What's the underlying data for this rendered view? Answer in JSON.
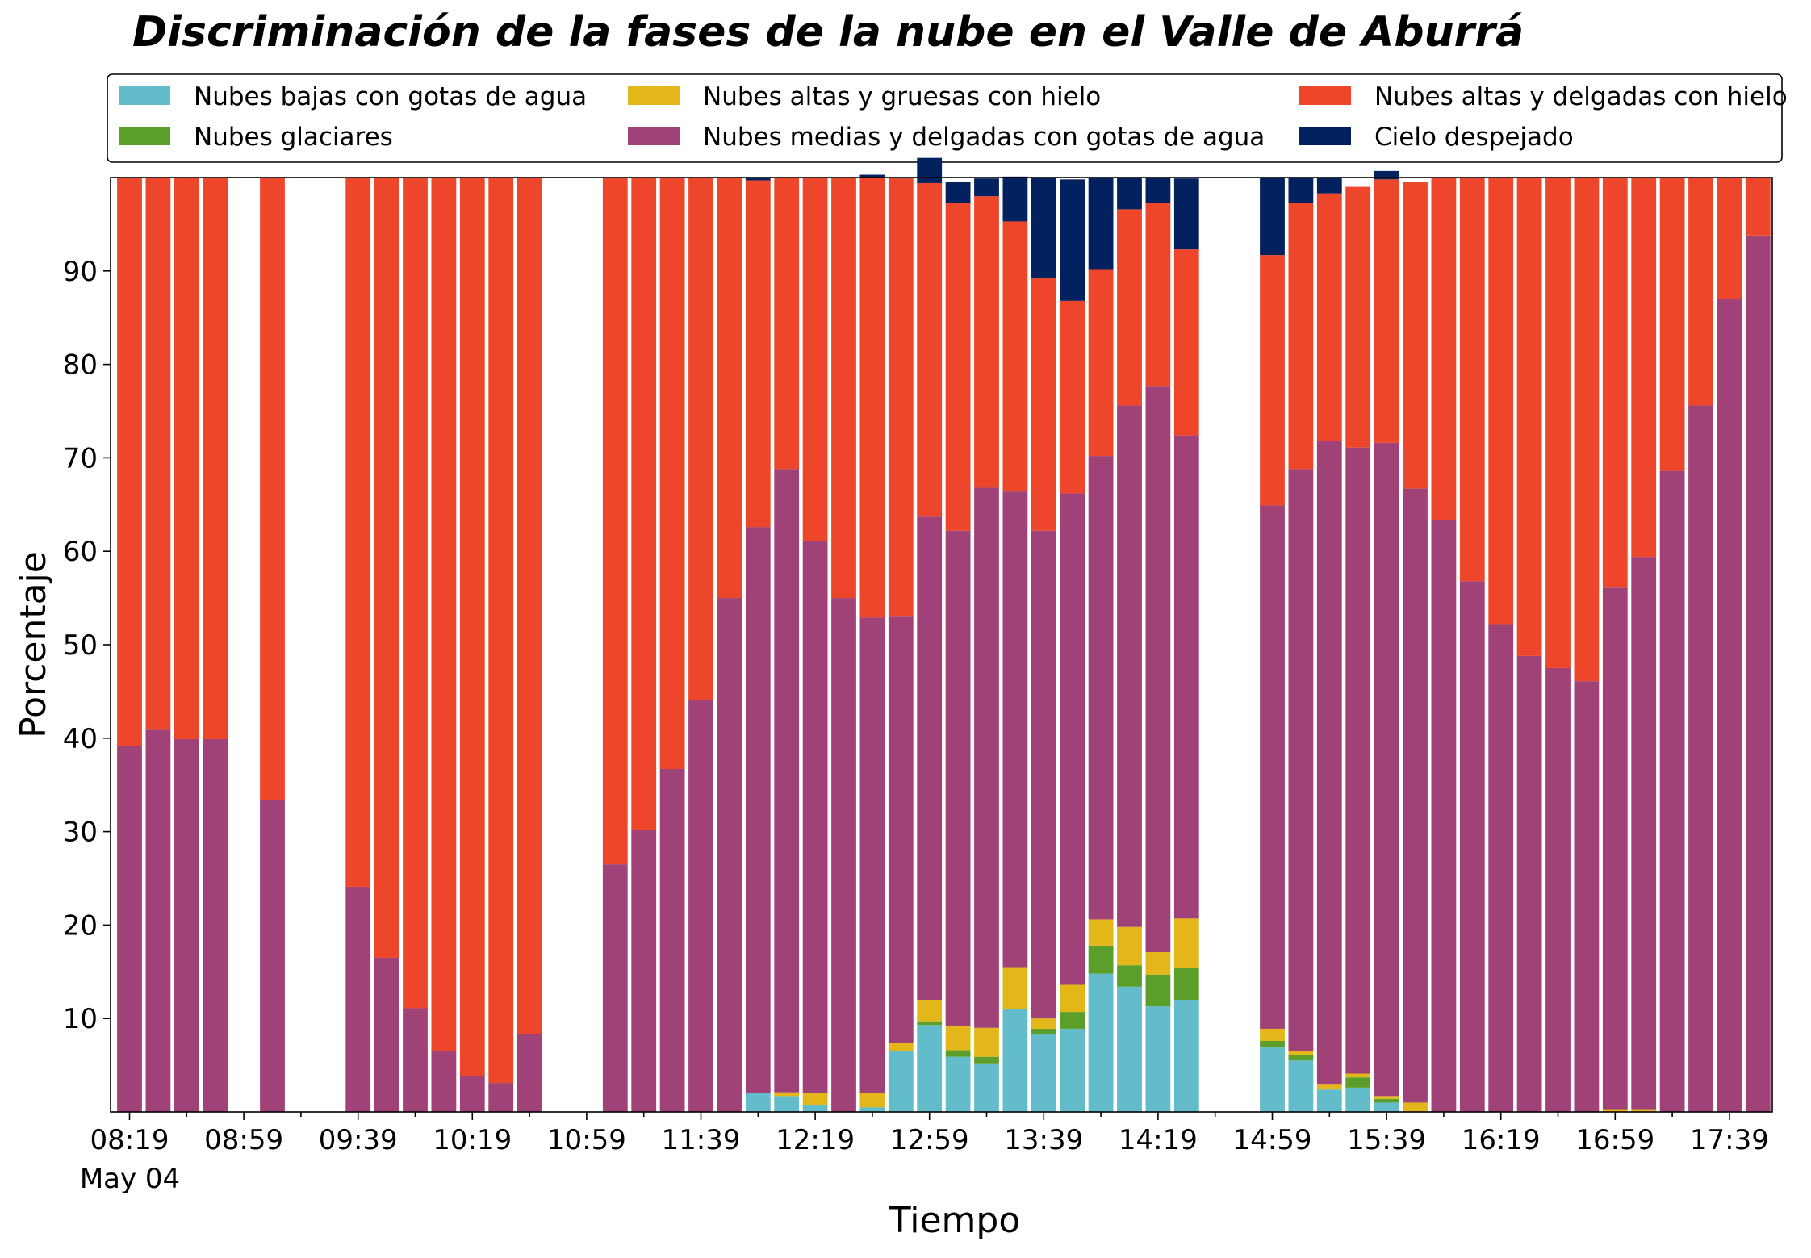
{
  "chart_data": {
    "type": "bar",
    "stacked": true,
    "title": "Discriminación de la fases de la nube en el Valle de Aburrá",
    "xlabel": "Tiempo",
    "ylabel": "Porcentaje",
    "ylim": [
      0,
      100
    ],
    "yticks": [
      10,
      20,
      30,
      40,
      50,
      60,
      70,
      80,
      90
    ],
    "x_major_tick_labels": [
      "08:19",
      "08:59",
      "09:39",
      "10:19",
      "10:59",
      "11:39",
      "12:19",
      "12:59",
      "13:39",
      "14:19",
      "14:59",
      "15:39",
      "16:19",
      "16:59",
      "17:39"
    ],
    "x_date_label": "May 04",
    "legend": {
      "placement": "top",
      "columns": 3,
      "entries": [
        {
          "name": "Nubes bajas con gotas de agua",
          "color": "#63BCC9"
        },
        {
          "name": "Nubes glaciares",
          "color": "#5B9F2A"
        },
        {
          "name": "Nubes altas y gruesas con hielo",
          "color": "#E3B71A"
        },
        {
          "name": "Nubes medias y delgadas con gotas de agua",
          "color": "#A04178"
        },
        {
          "name": "Nubes altas y delgadas con hielo",
          "color": "#EE462B"
        },
        {
          "name": "Cielo despejado",
          "color": "#03215E"
        }
      ]
    },
    "x": [
      "08:19",
      "08:29",
      "08:39",
      "08:49",
      "08:59",
      "09:09",
      "09:19",
      "09:29",
      "09:39",
      "09:49",
      "09:59",
      "10:09",
      "10:19",
      "10:29",
      "10:39",
      "10:49",
      "10:59",
      "11:09",
      "11:19",
      "11:29",
      "11:39",
      "11:49",
      "11:59",
      "12:09",
      "12:19",
      "12:29",
      "12:39",
      "12:49",
      "12:59",
      "13:09",
      "13:19",
      "13:29",
      "13:39",
      "13:49",
      "13:59",
      "14:09",
      "14:19",
      "14:29",
      "14:39",
      "14:49",
      "14:59",
      "15:09",
      "15:19",
      "15:29",
      "15:39",
      "15:49",
      "15:59",
      "16:09",
      "16:19",
      "16:29",
      "16:39",
      "16:49",
      "16:59",
      "17:09",
      "17:19",
      "17:29",
      "17:39",
      "17:49"
    ],
    "series": [
      {
        "name": "Nubes bajas con gotas de agua",
        "color": "#63BCC9",
        "values": [
          0,
          0,
          0,
          0,
          null,
          0,
          null,
          null,
          0,
          0,
          0,
          0,
          0,
          0,
          0,
          null,
          null,
          0,
          0,
          0,
          0,
          0,
          2,
          1.7,
          0.7,
          0,
          0.5,
          6.5,
          9.3,
          5.9,
          5.2,
          11.0,
          8.3,
          8.9,
          14.8,
          13.4,
          11.3,
          12.0,
          null,
          null,
          6.9,
          5.5,
          2.4,
          2.6,
          1.0,
          0,
          0,
          0,
          0,
          0,
          0,
          0,
          0,
          0,
          0,
          0,
          0,
          0
        ]
      },
      {
        "name": "Nubes glaciares",
        "color": "#5B9F2A",
        "values": [
          0,
          0,
          0,
          0,
          null,
          0,
          null,
          null,
          0,
          0,
          0,
          0,
          0,
          0,
          0,
          null,
          null,
          0,
          0,
          0,
          0,
          0,
          0,
          0,
          0,
          0,
          0,
          0,
          0.4,
          0.7,
          0.7,
          0,
          0.6,
          1.8,
          3.0,
          2.3,
          3.4,
          3.4,
          null,
          null,
          0.7,
          0.6,
          0,
          1.1,
          0.4,
          0,
          0,
          0,
          0,
          0,
          0,
          0,
          0,
          0,
          0,
          0,
          0,
          0
        ]
      },
      {
        "name": "Nubes altas y gruesas con hielo",
        "color": "#E3B71A",
        "values": [
          0,
          0,
          0,
          0,
          null,
          0,
          null,
          null,
          0,
          0,
          0,
          0,
          0,
          0,
          0,
          null,
          null,
          0,
          0,
          0,
          0,
          0,
          0,
          0.4,
          1.3,
          0,
          1.5,
          0.9,
          2.3,
          2.6,
          3.1,
          4.5,
          1.1,
          2.9,
          2.8,
          4.1,
          2.4,
          5.3,
          null,
          null,
          1.3,
          0.4,
          0.6,
          0.4,
          0.3,
          1.0,
          0,
          0,
          0,
          0,
          0,
          0,
          0.3,
          0.3,
          0,
          0,
          0,
          0
        ]
      },
      {
        "name": "Nubes medias y delgadas con gotas de agua",
        "color": "#A04178",
        "values": [
          39.2,
          40.9,
          39.9,
          39.9,
          null,
          33.4,
          null,
          null,
          24.1,
          16.5,
          11.1,
          6.5,
          3.8,
          3.1,
          8.3,
          null,
          null,
          26.5,
          30.2,
          36.7,
          44.1,
          55.0,
          60.6,
          66.7,
          59.1,
          55.0,
          50.9,
          45.6,
          51.7,
          53.0,
          57.8,
          50.9,
          52.2,
          52.6,
          49.6,
          55.8,
          60.6,
          51.7,
          null,
          null,
          56.0,
          62.3,
          68.8,
          67.0,
          69.9,
          65.7,
          63.3,
          56.8,
          52.2,
          48.8,
          47.5,
          46.1,
          55.8,
          59.1,
          68.6,
          75.6,
          87.0,
          93.8
        ]
      },
      {
        "name": "Nubes altas y delgadas con hielo",
        "color": "#EE462B",
        "values": [
          60.8,
          59.1,
          60.1,
          60.1,
          null,
          66.6,
          null,
          null,
          75.9,
          83.5,
          88.9,
          93.5,
          96.2,
          96.9,
          91.7,
          null,
          null,
          73.5,
          69.8,
          63.3,
          55.9,
          45.0,
          37.1,
          31.2,
          38.9,
          45.0,
          47.1,
          46.9,
          35.7,
          35.1,
          31.2,
          28.9,
          27.0,
          20.6,
          20.0,
          21.0,
          19.6,
          19.9,
          null,
          null,
          26.8,
          28.5,
          26.5,
          27.9,
          28.2,
          32.8,
          36.7,
          43.2,
          47.8,
          51.2,
          52.5,
          53.9,
          43.9,
          40.6,
          31.4,
          24.4,
          13.0,
          6.2
        ]
      },
      {
        "name": "Cielo despejado",
        "color": "#03215E",
        "values": [
          0,
          0,
          0,
          0,
          null,
          0,
          null,
          null,
          0,
          0,
          0,
          0,
          0,
          0,
          0,
          null,
          null,
          0,
          0,
          0,
          0,
          0,
          0.3,
          0,
          0,
          0,
          0.3,
          0.1,
          2.7,
          2.2,
          1.9,
          4.8,
          10.8,
          13.0,
          9.8,
          3.4,
          2.7,
          7.6,
          null,
          null,
          8.3,
          2.7,
          1.7,
          0,
          0.9,
          0,
          0,
          0,
          0,
          0,
          0,
          0,
          0,
          0,
          0,
          0,
          0,
          0
        ]
      }
    ]
  }
}
